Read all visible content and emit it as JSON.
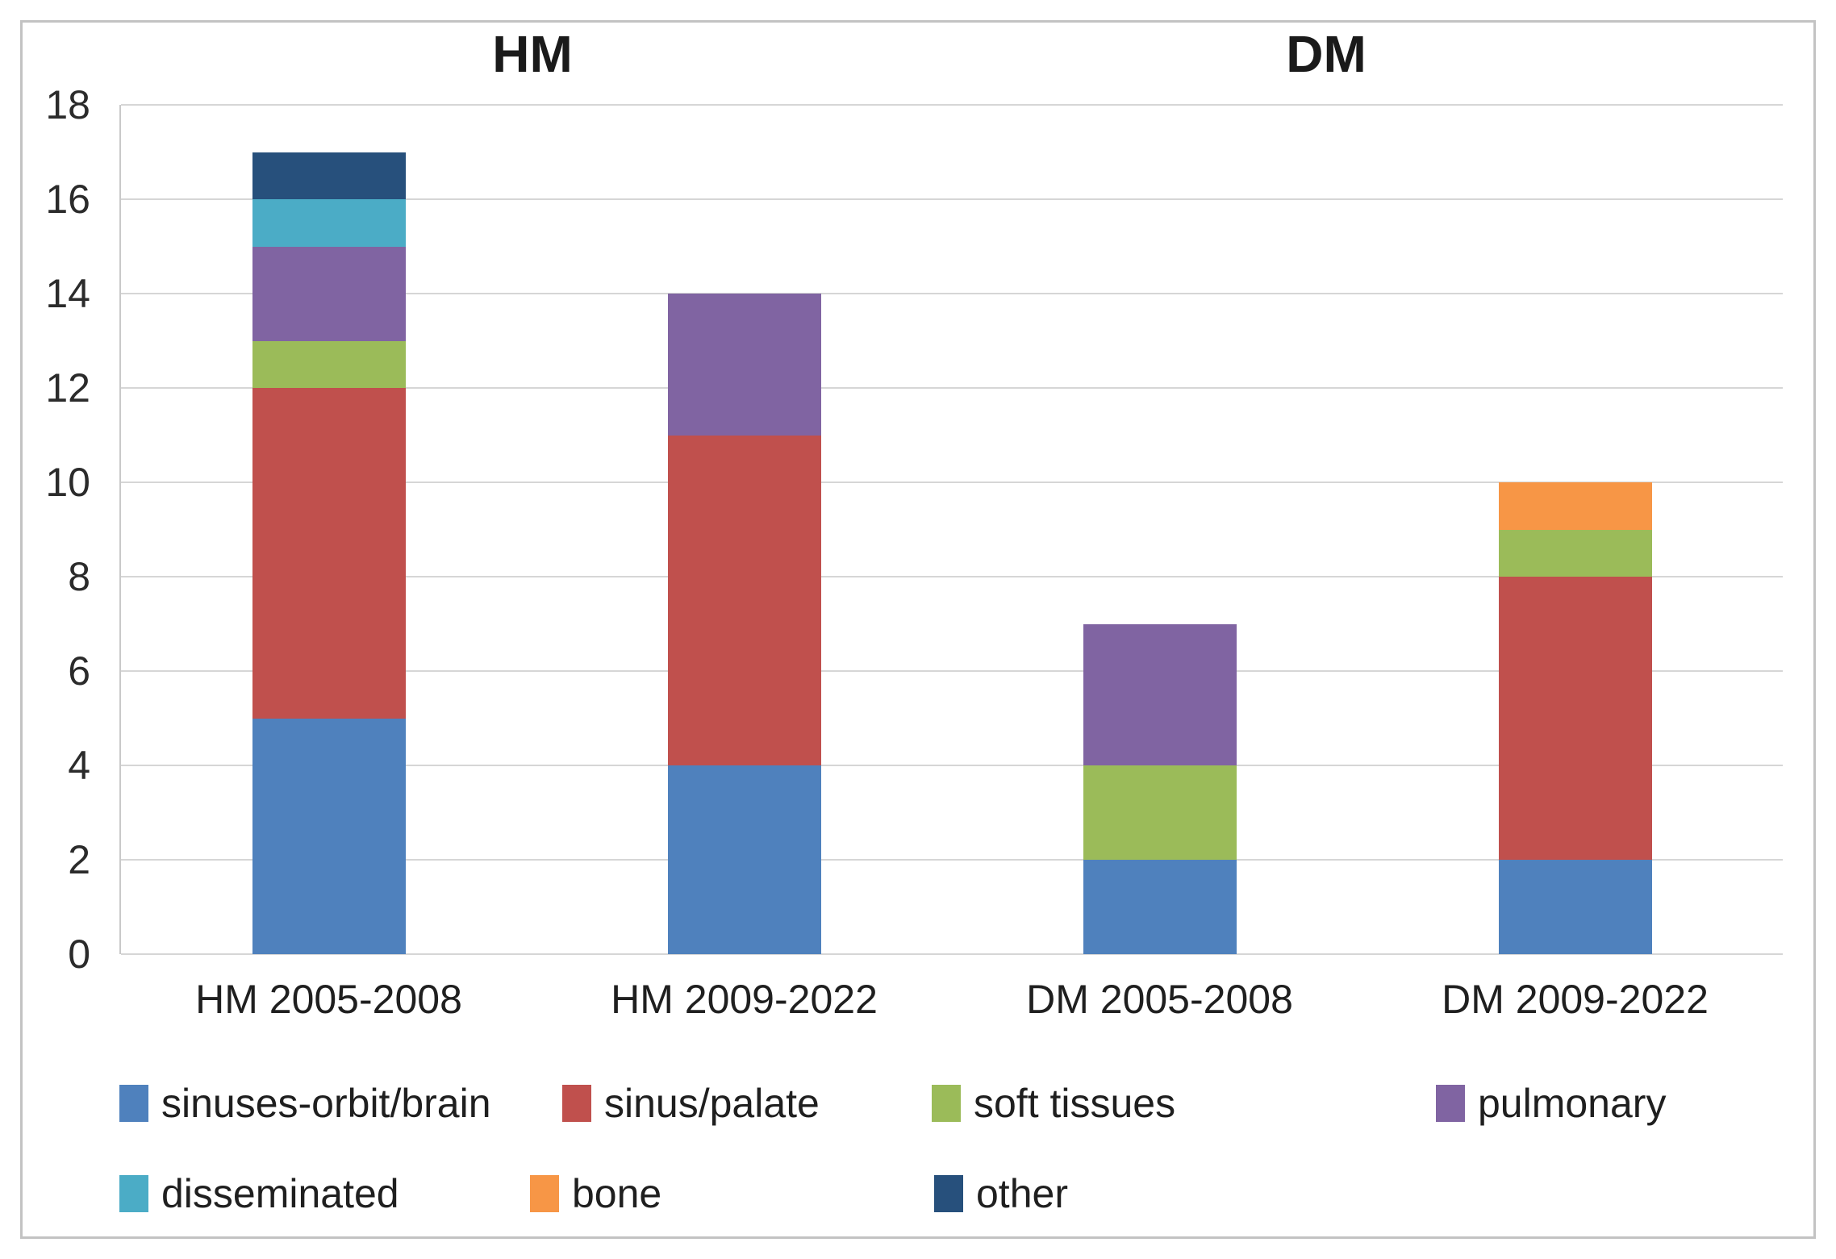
{
  "titles": {
    "left": "HM",
    "right": "DM"
  },
  "chart_data": {
    "type": "bar",
    "stacked": true,
    "title": "",
    "xlabel": "",
    "ylabel": "",
    "categories": [
      "HM 2005-2008",
      "HM 2009-2022",
      "DM 2005-2008",
      "DM 2009-2022"
    ],
    "series": [
      {
        "name": "sinuses-orbit/brain",
        "color": "#4F81BD",
        "values": [
          5,
          4,
          2,
          2
        ]
      },
      {
        "name": "sinus/palate",
        "color": "#C0504D",
        "values": [
          7,
          7,
          0,
          6
        ]
      },
      {
        "name": "soft tissues",
        "color": "#9BBB59",
        "values": [
          1,
          0,
          2,
          1
        ]
      },
      {
        "name": "pulmonary",
        "color": "#8064A2",
        "values": [
          2,
          3,
          3,
          0
        ]
      },
      {
        "name": "disseminated",
        "color": "#4BACC6",
        "values": [
          1,
          0,
          0,
          0
        ]
      },
      {
        "name": "bone",
        "color": "#F79646",
        "values": [
          0,
          0,
          0,
          1
        ]
      },
      {
        "name": "other",
        "color": "#27507C",
        "values": [
          1,
          0,
          0,
          0
        ]
      }
    ],
    "ylim": [
      0,
      18
    ],
    "yticks": [
      0,
      2,
      4,
      6,
      8,
      10,
      12,
      14,
      16,
      18
    ],
    "grid": true,
    "legend_position": "bottom"
  },
  "legend": {
    "rows": [
      [
        "sinuses-orbit/brain",
        "sinus/palate",
        "soft tissues",
        "pulmonary"
      ],
      [
        "disseminated",
        "bone",
        "other"
      ]
    ]
  }
}
